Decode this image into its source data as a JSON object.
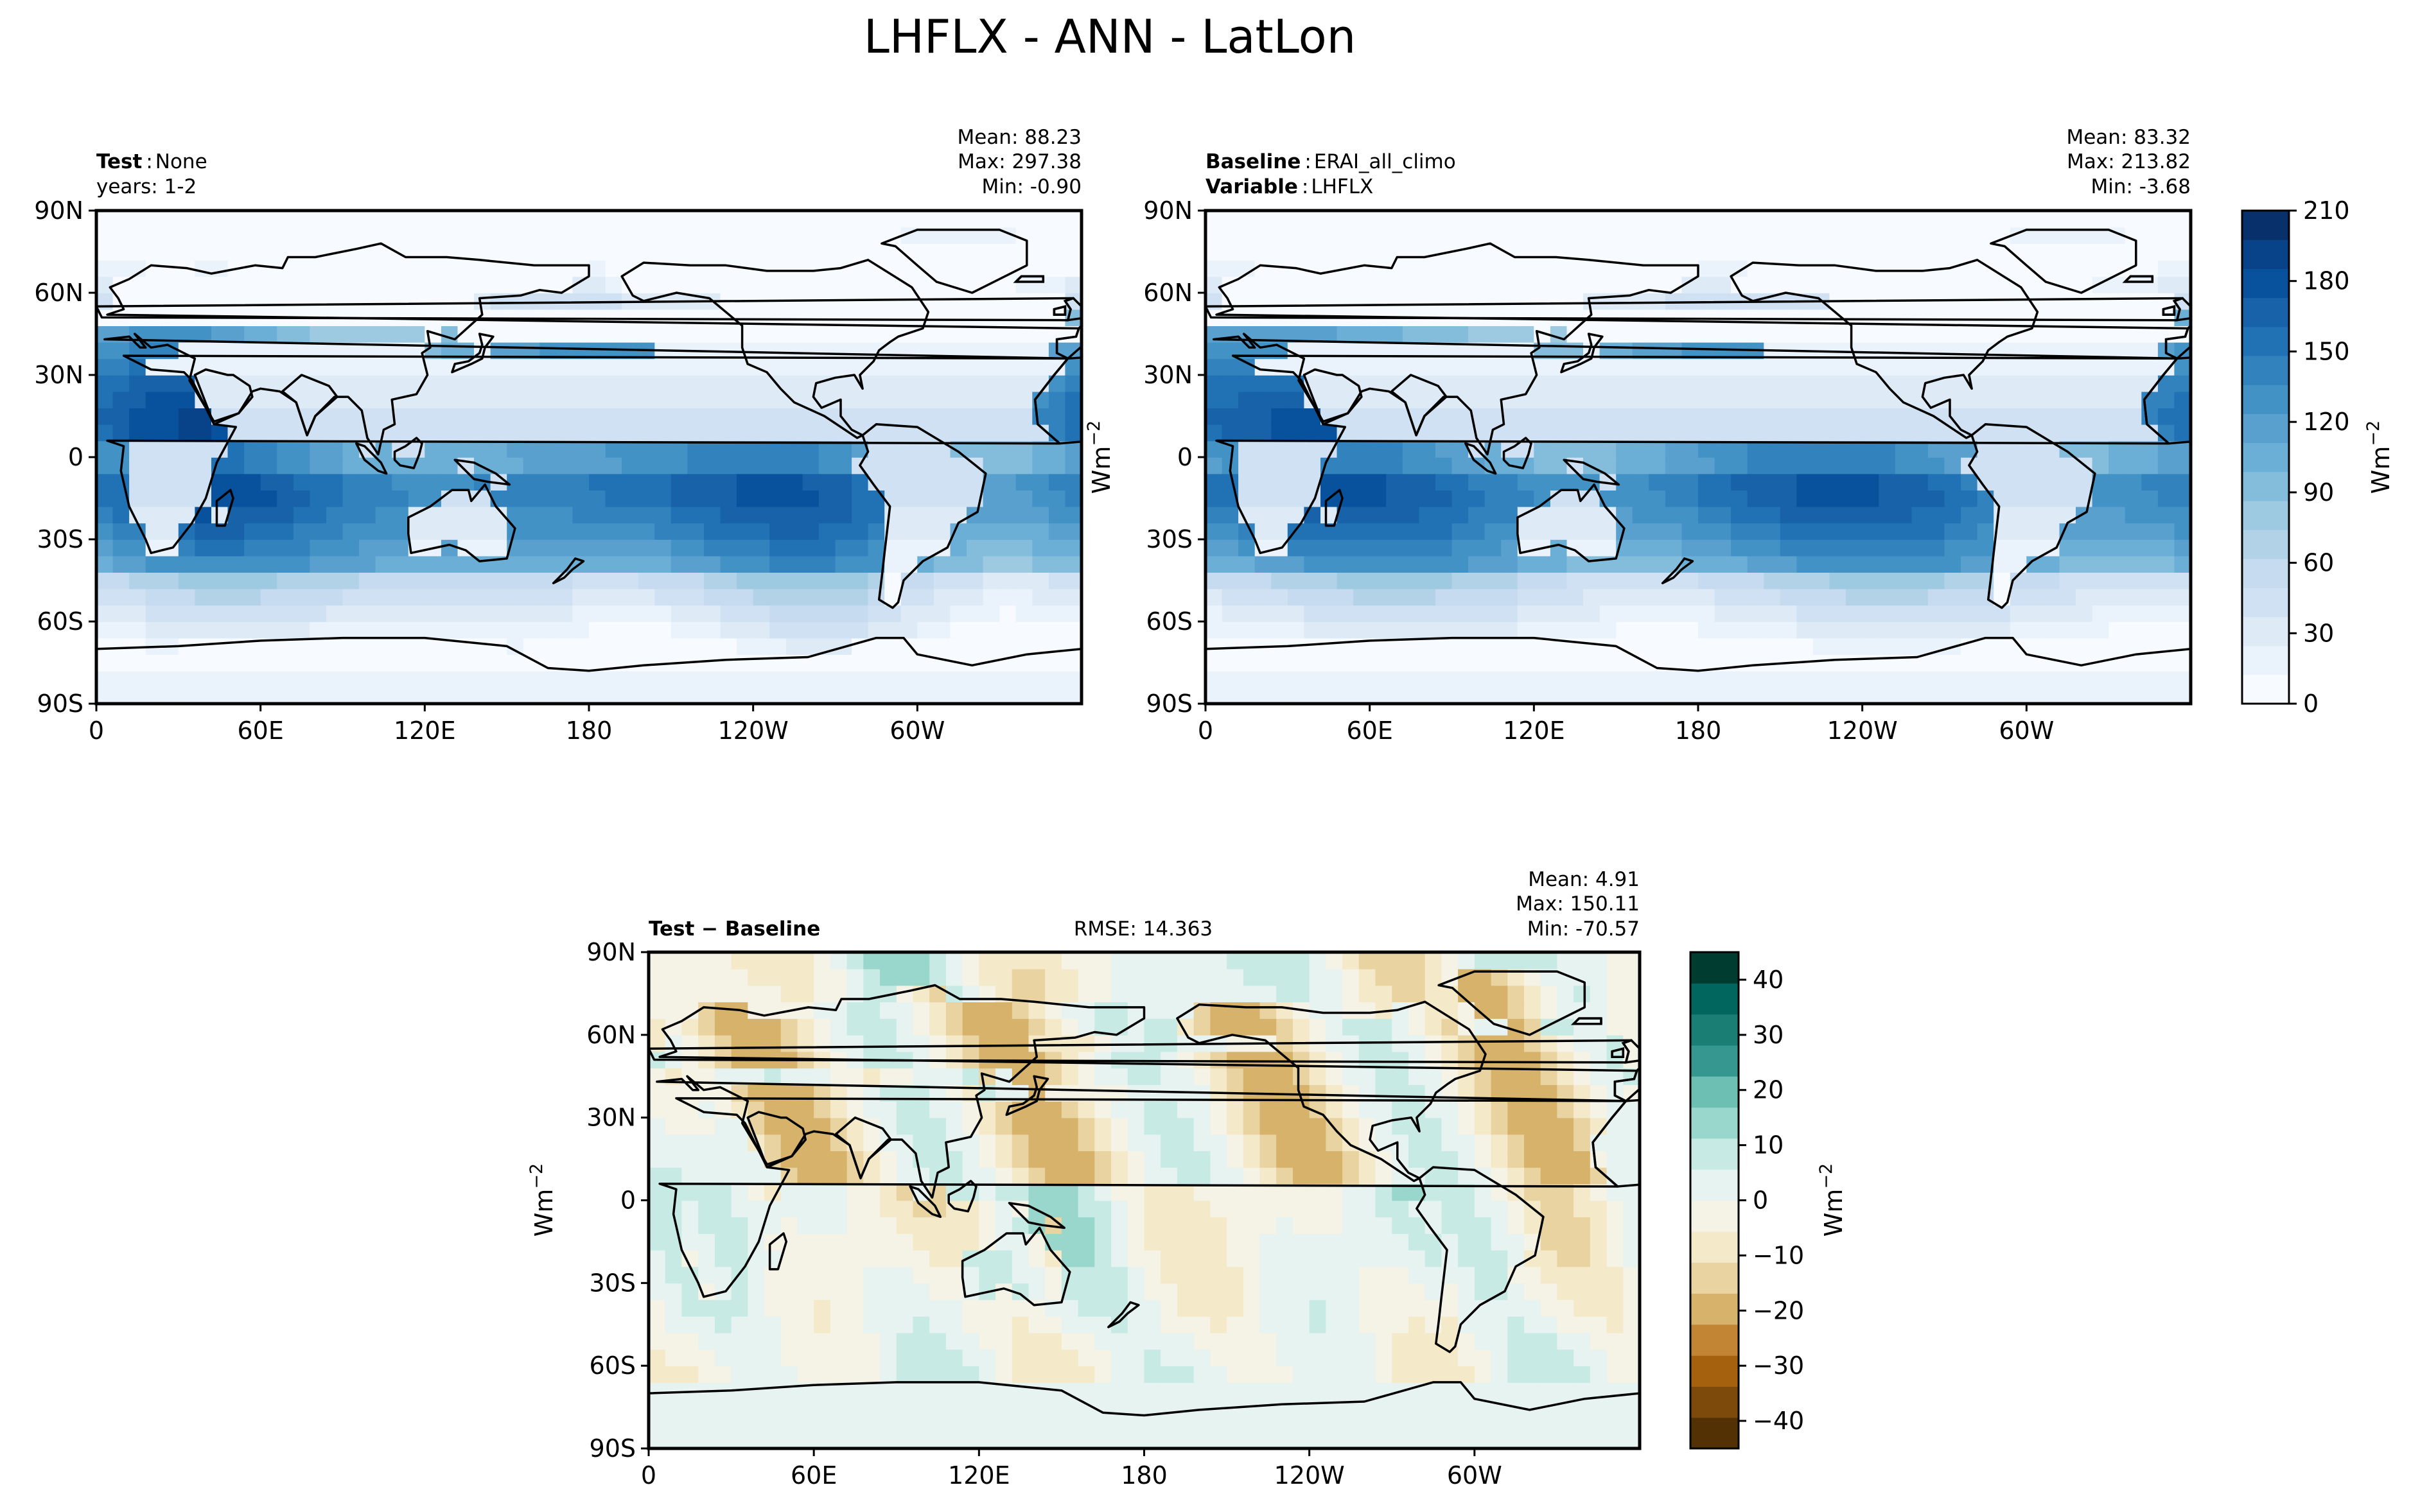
{
  "figure": {
    "title": "LHFLX - ANN - LatLon"
  },
  "panels": {
    "test": {
      "label_bold": "Test",
      "label_text": "None",
      "label2": "years: 1-2",
      "stats": {
        "mean": "Mean: 88.23",
        "max": "Max: 297.38",
        "min": "Min: -0.90"
      }
    },
    "baseline": {
      "label_bold": "Baseline",
      "label_text": "ERAI_all_climo",
      "label2_bold": "Variable",
      "label2_text": "LHFLX",
      "stats": {
        "mean": "Mean: 83.32",
        "max": "Max: 213.82",
        "min": "Min: -3.68"
      }
    },
    "diff": {
      "label_bold": "Test − Baseline",
      "rmse": "RMSE: 14.363",
      "stats": {
        "mean": "Mean:  4.91",
        "max": "Max: 150.11",
        "min": "Min: -70.57"
      }
    }
  },
  "units": {
    "base": "Wm",
    "exp": "−2"
  },
  "chart_data": [
    {
      "type": "heatmap",
      "name": "test",
      "x_ticks": [
        "0",
        "60E",
        "120E",
        "180",
        "120W",
        "60W"
      ],
      "y_ticks": [
        "90N",
        "60N",
        "30N",
        "0",
        "30S",
        "60S",
        "90S"
      ],
      "xlim": [
        0,
        360
      ],
      "ylim": [
        -90,
        90
      ],
      "colormap": "Blues",
      "value_range": [
        0,
        210
      ],
      "mean": 88.23,
      "max": 297.38,
      "min": -0.9
    },
    {
      "type": "heatmap",
      "name": "baseline",
      "x_ticks": [
        "0",
        "60E",
        "120E",
        "180",
        "120W",
        "60W"
      ],
      "y_ticks": [
        "90N",
        "60N",
        "30N",
        "0",
        "30S",
        "60S",
        "90S"
      ],
      "xlim": [
        0,
        360
      ],
      "ylim": [
        -90,
        90
      ],
      "colormap": "Blues",
      "value_range": [
        0,
        210
      ],
      "mean": 83.32,
      "max": 213.82,
      "min": -3.68,
      "colorbar_ticks": [
        "0",
        "30",
        "60",
        "90",
        "120",
        "150",
        "180",
        "210"
      ]
    },
    {
      "type": "heatmap",
      "name": "diff",
      "x_ticks": [
        "0",
        "60E",
        "120E",
        "180",
        "120W",
        "60W"
      ],
      "y_ticks": [
        "90N",
        "60N",
        "30N",
        "0",
        "30S",
        "60S",
        "90S"
      ],
      "xlim": [
        0,
        360
      ],
      "ylim": [
        -90,
        90
      ],
      "colormap": "BrBG",
      "value_range": [
        -45,
        45
      ],
      "rmse": 14.363,
      "mean": 4.91,
      "max": 150.11,
      "min": -70.57,
      "colorbar_ticks": [
        "40",
        "30",
        "20",
        "10",
        "0",
        "−10",
        "−20",
        "−30",
        "−40"
      ]
    }
  ],
  "colors": {
    "blues": [
      "#f7fbff",
      "#eaf3fb",
      "#deebf7",
      "#cfe1f2",
      "#c6dbef",
      "#b2d2e8",
      "#9ecae1",
      "#84bcdb",
      "#6baed6",
      "#5aa0cf",
      "#4292c6",
      "#3282be",
      "#2171b5",
      "#1762a8",
      "#08519c",
      "#084288",
      "#08306b"
    ],
    "brbg": [
      "#543005",
      "#7e4a0c",
      "#a6610e",
      "#c28533",
      "#d7b26a",
      "#e8d3a1",
      "#f4e9c9",
      "#f5f2e6",
      "#e6f3f0",
      "#c7eae4",
      "#99d7cc",
      "#6cbfb2",
      "#35978f",
      "#1a7e75",
      "#01665e",
      "#003c30"
    ],
    "coast": "#000000"
  }
}
